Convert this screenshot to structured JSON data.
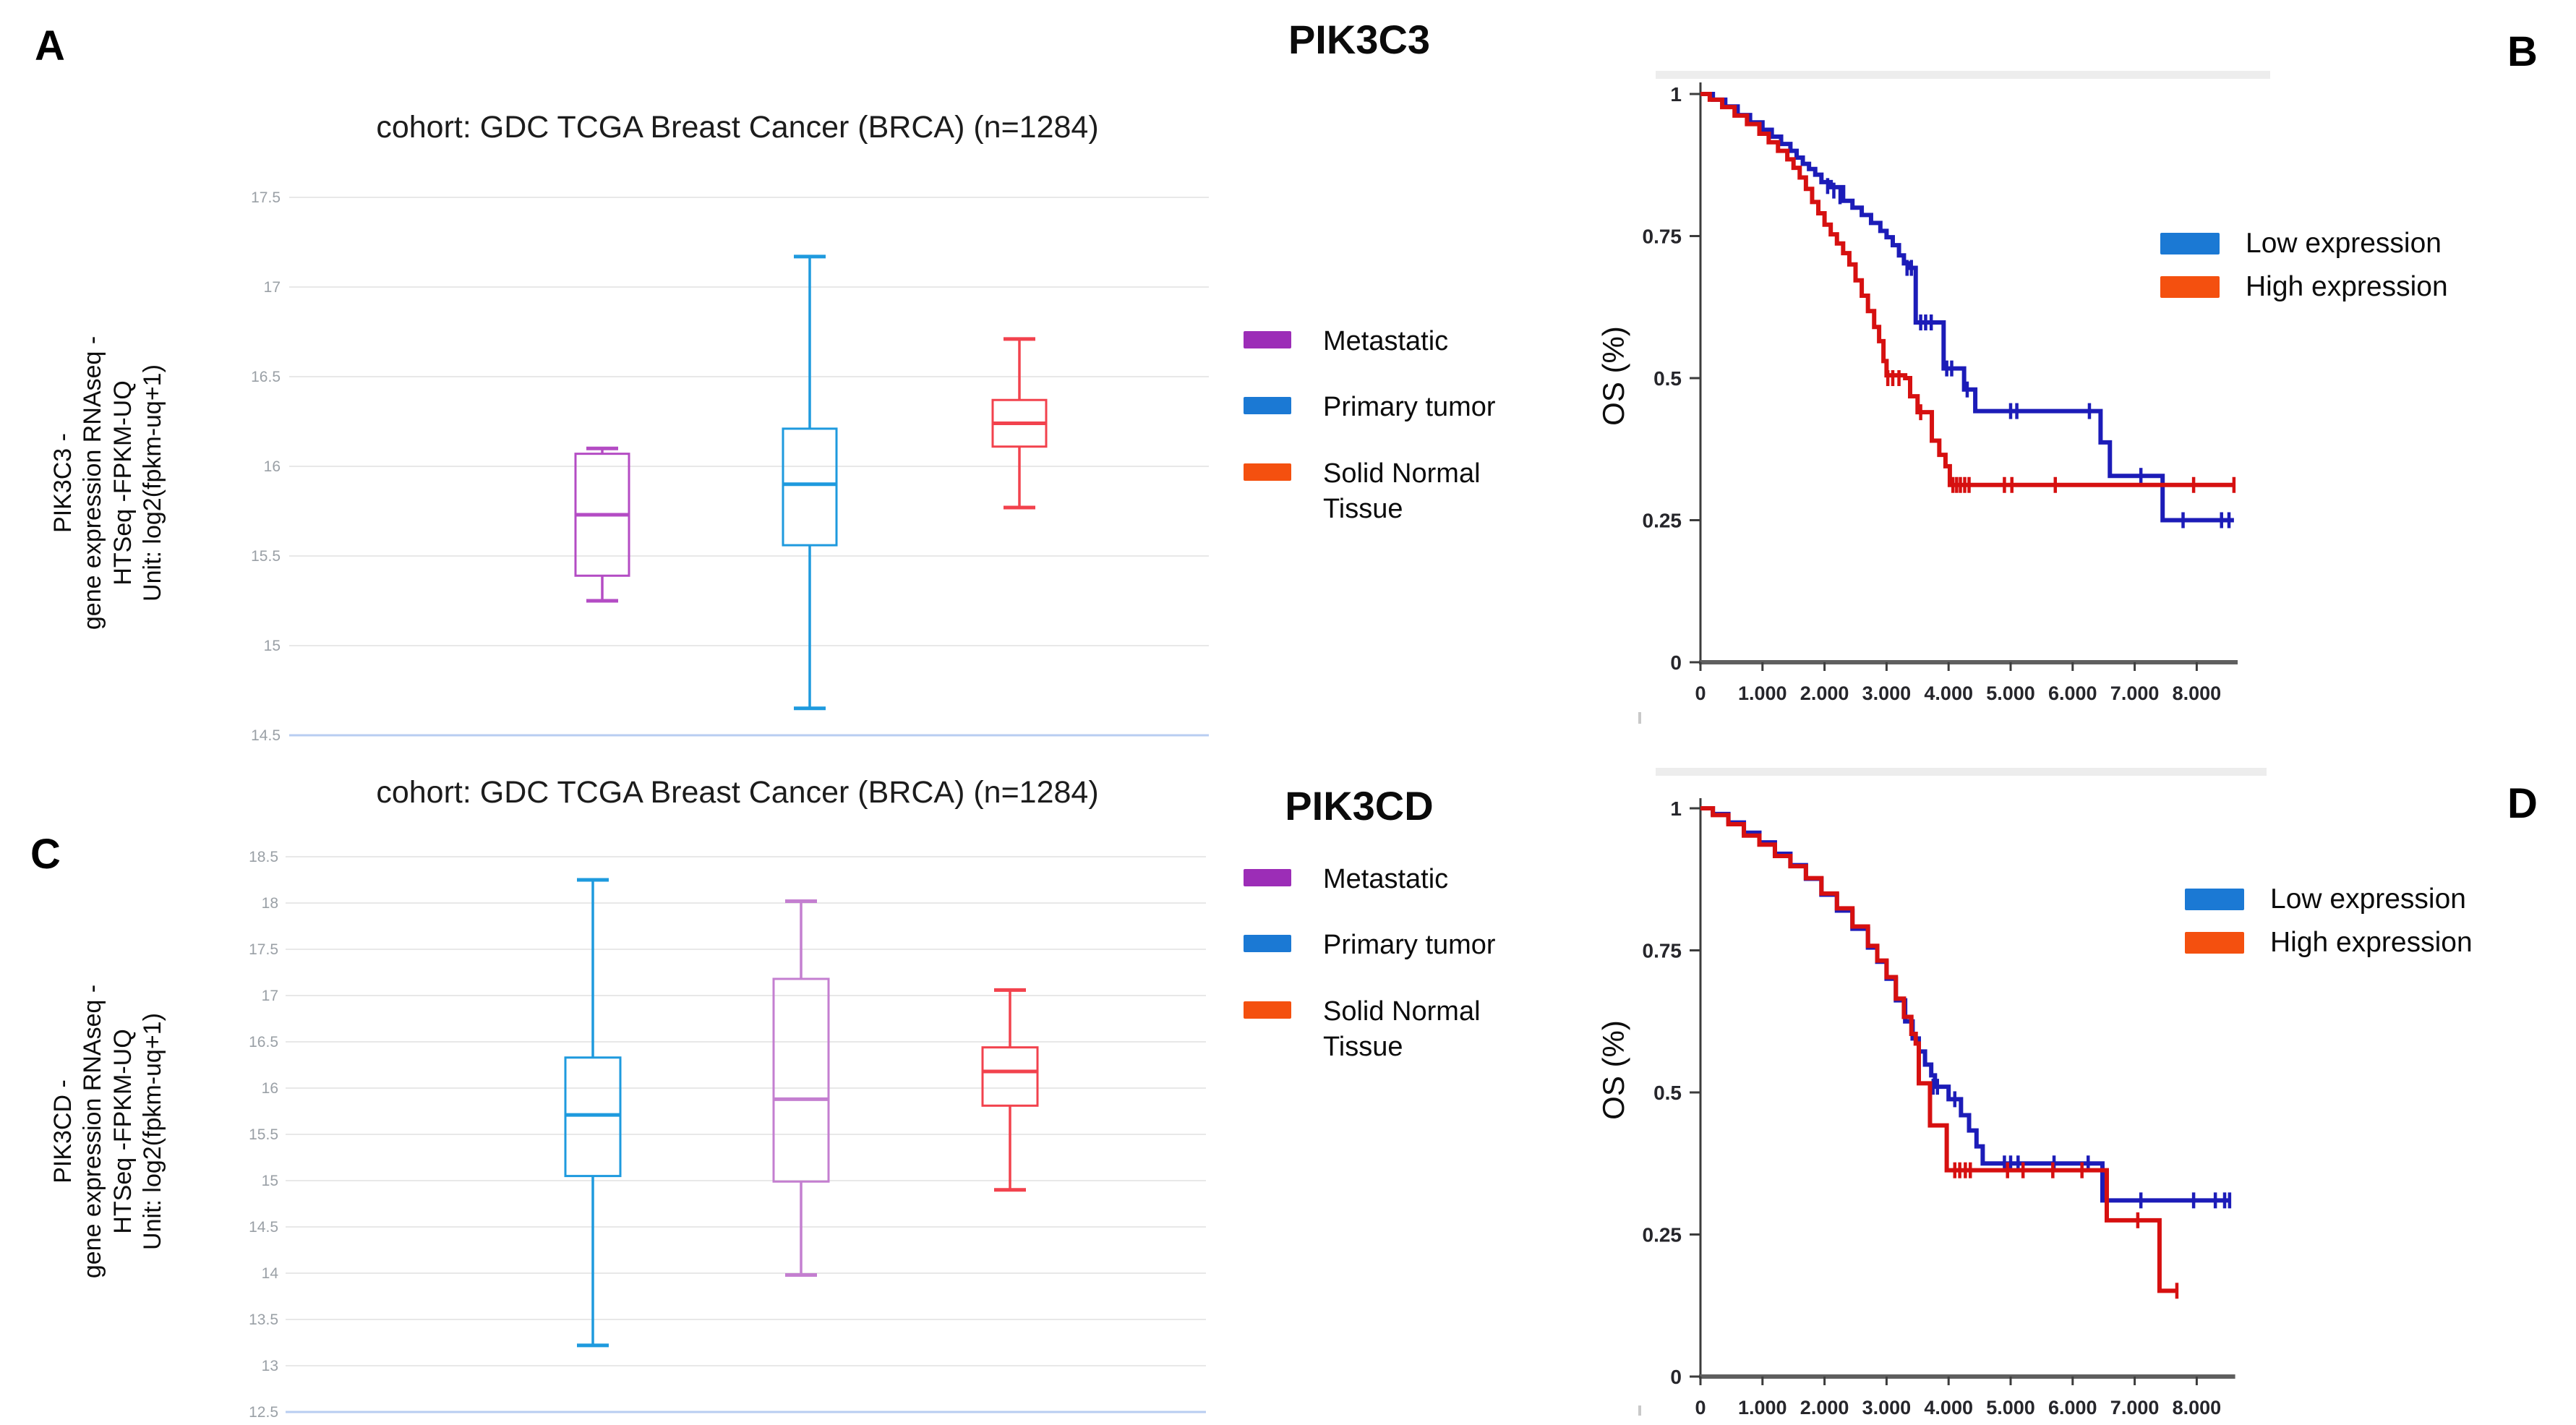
{
  "figure": {
    "panel_labels": {
      "a": "A",
      "b": "B",
      "c": "C",
      "d": "D"
    },
    "gene_titles": {
      "top": "PIK3C3",
      "bottom": "PIK3CD"
    }
  },
  "colors": {
    "legend_metastatic": "#9c2db7",
    "legend_primary": "#1b79d4",
    "legend_solid_normal": "#f4500f",
    "box_purple_dark": "#b44cc4",
    "box_purple_light": "#c47fd0",
    "box_blue": "#1e9ade",
    "box_red": "#f2424d",
    "km_low_line": "#1c1cb8",
    "km_high_line": "#d61010",
    "km_legend_low": "#1b79d4",
    "km_legend_high": "#f4500f",
    "grid": "#e8e8e8",
    "grid_bottom": "#b8cdf1",
    "box_tick_label": "#9aa0a6",
    "km_tick_label": "#26262b",
    "axis": "#5f5f5f"
  },
  "legend_sample_types": {
    "metastatic": "Metastatic",
    "primary": "Primary tumor",
    "solid_normal": "Solid Normal\nTissue"
  },
  "legend_expression": {
    "low": "Low expression",
    "high": "High expression"
  },
  "chart_data": [
    {
      "id": "box_pik3c3",
      "type": "box",
      "title": "cohort: GDC TCGA Breast Cancer (BRCA) (n=1284)",
      "ylabel": "PIK3C3 -\ngene expression RNAseq -\nHTSeq -FPKM-UQ\nUnit: log2(fpkm-uq+1)",
      "ylim": [
        14.5,
        17.5
      ],
      "yticks": [
        "17.5",
        "17",
        "16.5",
        "16",
        "15.5",
        "15",
        "14.5"
      ],
      "grid": true,
      "legend_position": "right",
      "groups": [
        {
          "name": "Metastatic",
          "color": "#b44cc4",
          "low": 15.25,
          "q1": 15.39,
          "median": 15.73,
          "q3": 16.07,
          "high": 16.1
        },
        {
          "name": "Primary tumor",
          "color": "#1e9ade",
          "low": 14.65,
          "q1": 15.56,
          "median": 15.9,
          "q3": 16.21,
          "high": 17.17
        },
        {
          "name": "Solid Normal Tissue",
          "color": "#f2424d",
          "low": 15.77,
          "q1": 16.11,
          "median": 16.24,
          "q3": 16.37,
          "high": 16.71
        }
      ]
    },
    {
      "id": "km_pik3c3",
      "type": "line",
      "title": "PIK3C3",
      "ylabel": "OS (%)",
      "xlim": [
        0,
        8.66
      ],
      "ylim": [
        0,
        1
      ],
      "yticks": [
        "1",
        "0.75",
        "0.5",
        "0.25",
        "0"
      ],
      "ytick_values": [
        1,
        0.75,
        0.5,
        0.25,
        0
      ],
      "xticks": [
        "0",
        "1.000",
        "2.000",
        "3.000",
        "4.000",
        "5.000",
        "6.000",
        "7.000",
        "8.000"
      ],
      "legend_position": "right",
      "series": [
        {
          "name": "Low expression",
          "color": "#1c1cb8",
          "steps": [
            [
              0,
              1
            ],
            [
              0.2,
              0.99
            ],
            [
              0.4,
              0.978
            ],
            [
              0.6,
              0.963
            ],
            [
              0.8,
              0.95
            ],
            [
              1.0,
              0.937
            ],
            [
              1.15,
              0.925
            ],
            [
              1.3,
              0.912
            ],
            [
              1.45,
              0.9
            ],
            [
              1.55,
              0.888
            ],
            [
              1.65,
              0.877
            ],
            [
              1.75,
              0.868
            ],
            [
              1.85,
              0.858
            ],
            [
              1.95,
              0.845
            ],
            [
              2.1,
              0.836
            ],
            [
              2.3,
              0.812
            ],
            [
              2.45,
              0.8
            ],
            [
              2.6,
              0.787
            ],
            [
              2.75,
              0.773
            ],
            [
              2.9,
              0.759
            ],
            [
              3.0,
              0.748
            ],
            [
              3.1,
              0.734
            ],
            [
              3.2,
              0.716
            ],
            [
              3.28,
              0.702
            ],
            [
              3.35,
              0.694
            ],
            [
              3.47,
              0.598
            ],
            [
              3.92,
              0.517
            ],
            [
              4.25,
              0.48
            ],
            [
              4.43,
              0.442
            ],
            [
              6.45,
              0.387
            ],
            [
              6.6,
              0.328
            ],
            [
              7.45,
              0.25
            ],
            [
              8.6,
              0.25
            ]
          ],
          "censors": [
            [
              2.05,
              0.838
            ],
            [
              2.15,
              0.83
            ],
            [
              2.25,
              0.82
            ],
            [
              3.33,
              0.694
            ],
            [
              3.4,
              0.694
            ],
            [
              3.55,
              0.598
            ],
            [
              3.63,
              0.598
            ],
            [
              3.72,
              0.598
            ],
            [
              3.97,
              0.517
            ],
            [
              4.05,
              0.517
            ],
            [
              4.3,
              0.48
            ],
            [
              5.0,
              0.442
            ],
            [
              5.1,
              0.442
            ],
            [
              6.27,
              0.442
            ],
            [
              7.1,
              0.328
            ],
            [
              7.78,
              0.25
            ],
            [
              8.4,
              0.25
            ],
            [
              8.52,
              0.25
            ]
          ]
        },
        {
          "name": "High expression",
          "color": "#d61010",
          "steps": [
            [
              0,
              1
            ],
            [
              0.15,
              0.99
            ],
            [
              0.35,
              0.977
            ],
            [
              0.55,
              0.962
            ],
            [
              0.75,
              0.947
            ],
            [
              0.95,
              0.93
            ],
            [
              1.1,
              0.915
            ],
            [
              1.25,
              0.9
            ],
            [
              1.4,
              0.885
            ],
            [
              1.5,
              0.87
            ],
            [
              1.6,
              0.853
            ],
            [
              1.7,
              0.833
            ],
            [
              1.8,
              0.81
            ],
            [
              1.9,
              0.79
            ],
            [
              2.0,
              0.77
            ],
            [
              2.1,
              0.753
            ],
            [
              2.2,
              0.737
            ],
            [
              2.3,
              0.72
            ],
            [
              2.4,
              0.7
            ],
            [
              2.5,
              0.672
            ],
            [
              2.6,
              0.645
            ],
            [
              2.7,
              0.618
            ],
            [
              2.8,
              0.59
            ],
            [
              2.88,
              0.565
            ],
            [
              2.95,
              0.53
            ],
            [
              3.0,
              0.505
            ],
            [
              3.3,
              0.5
            ],
            [
              3.38,
              0.468
            ],
            [
              3.5,
              0.44
            ],
            [
              3.73,
              0.39
            ],
            [
              3.85,
              0.365
            ],
            [
              3.95,
              0.345
            ],
            [
              4.02,
              0.312
            ],
            [
              8.62,
              0.312
            ]
          ],
          "censors": [
            [
              3.02,
              0.5
            ],
            [
              3.1,
              0.5
            ],
            [
              3.2,
              0.5
            ],
            [
              3.55,
              0.44
            ],
            [
              4.07,
              0.312
            ],
            [
              4.13,
              0.312
            ],
            [
              4.19,
              0.312
            ],
            [
              4.26,
              0.312
            ],
            [
              4.33,
              0.312
            ],
            [
              4.9,
              0.312
            ],
            [
              5.02,
              0.312
            ],
            [
              5.72,
              0.312
            ],
            [
              7.95,
              0.312
            ],
            [
              8.6,
              0.312
            ]
          ]
        }
      ]
    },
    {
      "id": "box_pik3cd",
      "type": "box",
      "title": "cohort: GDC TCGA Breast Cancer (BRCA) (n=1284)",
      "ylabel": "PIK3CD -\ngene expression RNAseq -\nHTSeq -FPKM-UQ\nUnit: log2(fpkm-uq+1)",
      "ylim": [
        12.5,
        18.5
      ],
      "yticks": [
        "18.5",
        "18",
        "17.5",
        "17",
        "16.5",
        "16",
        "15.5",
        "15",
        "14.5",
        "14",
        "13.5",
        "13",
        "12.5"
      ],
      "grid": true,
      "legend_position": "right",
      "groups": [
        {
          "name": "Primary tumor",
          "color": "#1e9ade",
          "low": 13.22,
          "q1": 15.05,
          "median": 15.71,
          "q3": 16.33,
          "high": 18.25
        },
        {
          "name": "Metastatic",
          "color": "#c47fd0",
          "low": 13.98,
          "q1": 14.99,
          "median": 15.88,
          "q3": 17.18,
          "high": 18.02
        },
        {
          "name": "Solid Normal Tissue",
          "color": "#f2424d",
          "low": 14.9,
          "q1": 15.81,
          "median": 16.18,
          "q3": 16.44,
          "high": 17.06
        }
      ]
    },
    {
      "id": "km_pik3cd",
      "type": "line",
      "title": "PIK3CD",
      "ylabel": "OS (%)",
      "xlim": [
        0,
        8.62
      ],
      "ylim": [
        0,
        1
      ],
      "yticks": [
        "1",
        "0.75",
        "0.5",
        "0.25",
        "0"
      ],
      "ytick_values": [
        1,
        0.75,
        0.5,
        0.25,
        0
      ],
      "xticks": [
        "0",
        "1.000",
        "2.000",
        "3.000",
        "4.000",
        "5.000",
        "6.000",
        "7.000",
        "8.000"
      ],
      "legend_position": "right",
      "series": [
        {
          "name": "Low expression",
          "color": "#1c1cb8",
          "steps": [
            [
              0,
              1
            ],
            [
              0.2,
              0.99
            ],
            [
              0.45,
              0.975
            ],
            [
              0.7,
              0.957
            ],
            [
              0.95,
              0.94
            ],
            [
              1.2,
              0.92
            ],
            [
              1.45,
              0.9
            ],
            [
              1.7,
              0.876
            ],
            [
              1.95,
              0.848
            ],
            [
              2.2,
              0.82
            ],
            [
              2.45,
              0.788
            ],
            [
              2.7,
              0.755
            ],
            [
              2.85,
              0.73
            ],
            [
              3.0,
              0.7
            ],
            [
              3.15,
              0.662
            ],
            [
              3.3,
              0.625
            ],
            [
              3.42,
              0.595
            ],
            [
              3.52,
              0.572
            ],
            [
              3.62,
              0.549
            ],
            [
              3.72,
              0.53
            ],
            [
              3.78,
              0.51
            ],
            [
              4.0,
              0.488
            ],
            [
              4.2,
              0.46
            ],
            [
              4.33,
              0.433
            ],
            [
              4.45,
              0.405
            ],
            [
              4.55,
              0.375
            ],
            [
              6.48,
              0.31
            ],
            [
              8.55,
              0.31
            ]
          ],
          "censors": [
            [
              3.75,
              0.51
            ],
            [
              3.82,
              0.51
            ],
            [
              4.1,
              0.488
            ],
            [
              4.9,
              0.375
            ],
            [
              5.0,
              0.375
            ],
            [
              5.12,
              0.375
            ],
            [
              5.7,
              0.375
            ],
            [
              6.25,
              0.375
            ],
            [
              7.1,
              0.31
            ],
            [
              7.95,
              0.31
            ],
            [
              8.3,
              0.31
            ],
            [
              8.45,
              0.31
            ],
            [
              8.53,
              0.31
            ]
          ]
        },
        {
          "name": "High expression",
          "color": "#d61010",
          "steps": [
            [
              0,
              1
            ],
            [
              0.2,
              0.988
            ],
            [
              0.45,
              0.972
            ],
            [
              0.7,
              0.952
            ],
            [
              0.95,
              0.936
            ],
            [
              1.2,
              0.916
            ],
            [
              1.45,
              0.898
            ],
            [
              1.7,
              0.877
            ],
            [
              1.95,
              0.85
            ],
            [
              2.2,
              0.824
            ],
            [
              2.45,
              0.792
            ],
            [
              2.7,
              0.758
            ],
            [
              2.85,
              0.732
            ],
            [
              3.0,
              0.703
            ],
            [
              3.15,
              0.665
            ],
            [
              3.28,
              0.633
            ],
            [
              3.4,
              0.603
            ],
            [
              3.47,
              0.586
            ],
            [
              3.52,
              0.516
            ],
            [
              3.7,
              0.442
            ],
            [
              3.97,
              0.363
            ],
            [
              6.55,
              0.275
            ],
            [
              7.4,
              0.151
            ],
            [
              7.7,
              0.151
            ]
          ],
          "censors": [
            [
              4.1,
              0.363
            ],
            [
              4.18,
              0.363
            ],
            [
              4.27,
              0.363
            ],
            [
              4.35,
              0.363
            ],
            [
              4.95,
              0.363
            ],
            [
              5.2,
              0.363
            ],
            [
              5.68,
              0.363
            ],
            [
              6.15,
              0.363
            ],
            [
              7.05,
              0.275
            ],
            [
              7.68,
              0.151
            ]
          ]
        }
      ]
    }
  ]
}
